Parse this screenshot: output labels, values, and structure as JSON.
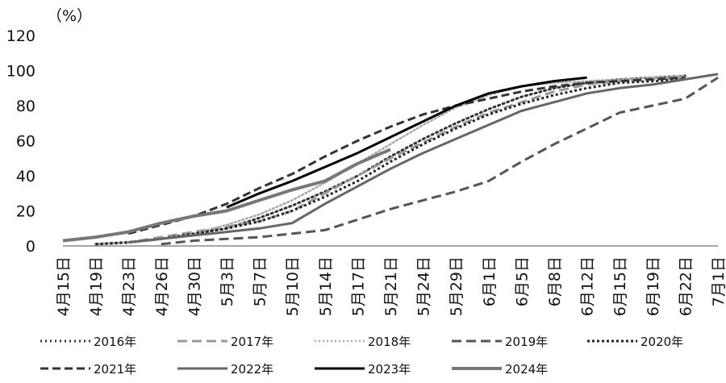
{
  "chart_data": {
    "type": "line",
    "title": "",
    "xlabel": "",
    "ylabel": "",
    "unit_label": "（%）",
    "ylim": [
      0,
      120
    ],
    "yticks": [
      0,
      20,
      40,
      60,
      80,
      100,
      120
    ],
    "categories": [
      "4月15日",
      "4月19日",
      "4月23日",
      "4月26日",
      "4月30日",
      "5月3日",
      "5月7日",
      "5月10日",
      "5月14日",
      "5月17日",
      "5月21日",
      "5月24日",
      "5月29日",
      "6月1日",
      "6月5日",
      "6月8日",
      "6月12日",
      "6月15日",
      "6月19日",
      "6月22日",
      "7月1日"
    ],
    "grid": false,
    "legend_position": "bottom",
    "series": [
      {
        "name": "2016年",
        "color": "#333333",
        "dash": "2,4",
        "width": 3,
        "values": [
          null,
          1,
          2,
          4,
          7,
          10,
          16,
          23,
          31,
          40,
          51,
          61,
          70,
          78,
          85,
          90,
          93,
          95,
          96,
          97,
          null
        ]
      },
      {
        "name": "2017年",
        "color": "#999999",
        "dash": "12,6",
        "width": 3,
        "values": [
          null,
          1,
          2,
          5,
          8,
          11,
          14,
          20,
          30,
          40,
          50,
          59,
          68,
          76,
          82,
          88,
          92,
          94,
          95,
          96,
          null
        ]
      },
      {
        "name": "2018年",
        "color": "#aaaaaa",
        "dash": "2,3",
        "width": 2.5,
        "values": [
          null,
          1,
          2,
          4,
          7,
          12,
          18,
          26,
          36,
          47,
          58,
          69,
          79,
          86,
          91,
          93,
          94,
          95,
          96,
          97,
          null
        ]
      },
      {
        "name": "2019年",
        "color": "#555555",
        "dash": "12,6",
        "width": 3,
        "values": [
          null,
          null,
          null,
          1,
          3,
          4,
          5,
          7,
          9,
          15,
          21,
          26,
          31,
          37,
          48,
          58,
          67,
          76,
          80,
          84,
          96
        ]
      },
      {
        "name": "2020年",
        "color": "#222222",
        "dash": "3,3",
        "width": 3,
        "values": [
          null,
          1,
          2,
          4,
          7,
          10,
          14,
          20,
          28,
          37,
          48,
          58,
          67,
          75,
          81,
          86,
          90,
          93,
          94,
          95,
          null
        ]
      },
      {
        "name": "2021年",
        "color": "#333333",
        "dash": "10,5",
        "width": 3,
        "values": [
          null,
          null,
          7,
          12,
          17,
          24,
          33,
          41,
          51,
          60,
          68,
          75,
          80,
          84,
          88,
          91,
          93,
          94,
          95,
          96,
          null
        ]
      },
      {
        "name": "2022年",
        "color": "#666666",
        "dash": "",
        "width": 3,
        "values": [
          null,
          null,
          2,
          4,
          6,
          8,
          10,
          13,
          24,
          34,
          44,
          53,
          61,
          69,
          77,
          82,
          87,
          90,
          92,
          95,
          98
        ]
      },
      {
        "name": "2023年",
        "color": "#000000",
        "dash": "",
        "width": 3,
        "values": [
          null,
          null,
          null,
          null,
          null,
          22,
          30,
          37,
          45,
          53,
          62,
          71,
          80,
          87,
          91,
          94,
          96,
          null,
          null,
          null,
          null
        ]
      },
      {
        "name": "2024年",
        "color": "#777777",
        "dash": "",
        "width": 4,
        "values": [
          3,
          5,
          8,
          13,
          17,
          20,
          26,
          32,
          37,
          47,
          55,
          null,
          null,
          null,
          null,
          null,
          null,
          null,
          null,
          null,
          null
        ]
      }
    ]
  }
}
